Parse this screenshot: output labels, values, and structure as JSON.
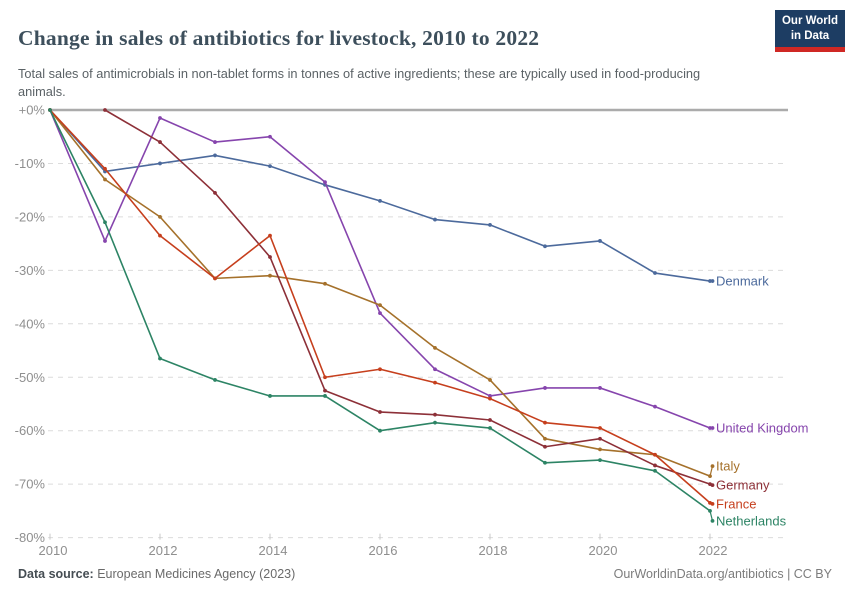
{
  "header": {
    "title": "Change in sales of antibiotics for livestock, 2010 to 2022",
    "subtitle": "Total sales of antimicrobials in non-tablet forms in tonnes of active ingredients; these are typically used in food-producing animals.",
    "logo": {
      "line1": "Our World",
      "line2": "in Data",
      "bg_color": "#1d3d63",
      "accent_color": "#cf2824"
    }
  },
  "chart_data": {
    "type": "line",
    "title": "Change in sales of antibiotics for livestock, 2010 to 2022",
    "xlabel": "",
    "ylabel": "",
    "x": [
      2010,
      2011,
      2012,
      2013,
      2014,
      2015,
      2016,
      2017,
      2018,
      2019,
      2020,
      2021,
      2022
    ],
    "xlim": [
      2010,
      2022
    ],
    "ylim": [
      -80,
      0
    ],
    "yticks": [
      0,
      -10,
      -20,
      -30,
      -40,
      -50,
      -60,
      -70,
      -80
    ],
    "ytick_labels": [
      "+0%",
      "-10%",
      "-20%",
      "-30%",
      "-40%",
      "-50%",
      "-60%",
      "-70%",
      "-80%"
    ],
    "xticks": [
      2010,
      2012,
      2014,
      2016,
      2018,
      2020,
      2022
    ],
    "xtick_labels": [
      "2010",
      "2012",
      "2014",
      "2016",
      "2018",
      "2020",
      "2022"
    ],
    "grid": "horizontal-dashed",
    "legend_position": "labels-at-line-ends",
    "series": [
      {
        "name": "Denmark",
        "color": "#4c6a9c",
        "label_dy": 0,
        "values": [
          0,
          -11.5,
          -10,
          -8.5,
          -10.5,
          -14,
          -17,
          -20.5,
          -21.5,
          -25.5,
          -24.5,
          -30.5,
          -32
        ]
      },
      {
        "name": "United Kingdom",
        "color": "#8645ad",
        "label_dy": 0,
        "values": [
          0,
          -24.5,
          -1.5,
          -6,
          -5,
          -13.5,
          -38,
          -48.5,
          -53.5,
          -52,
          -52,
          -55.5,
          -59.5
        ]
      },
      {
        "name": "Italy",
        "color": "#a5712b",
        "label_dy": -10,
        "values": [
          0,
          -13,
          -20,
          -31.5,
          -31,
          -32.5,
          -36.5,
          -44.5,
          -50.5,
          -61.5,
          -63.5,
          -64.5,
          -68.5
        ]
      },
      {
        "name": "Germany",
        "color": "#8d3038",
        "label_dy": 1,
        "values": [
          null,
          0,
          -6,
          -15.5,
          -27.5,
          -52.5,
          -56.5,
          -57,
          -58,
          -63,
          -61.5,
          -66.5,
          -70
        ]
      },
      {
        "name": "France",
        "color": "#c63f1d",
        "label_dy": 1,
        "values": [
          0,
          -11,
          -23.5,
          -31.5,
          -23.5,
          -50,
          -48.5,
          -51,
          -54,
          -58.5,
          -59.5,
          -64.5,
          -73.5
        ]
      },
      {
        "name": "Netherlands",
        "color": "#2d8465",
        "label_dy": 10,
        "values": [
          0,
          -21,
          -46.5,
          -50.5,
          -53.5,
          -53.5,
          -60,
          -58.5,
          -59.5,
          -66,
          -65.5,
          -67.5,
          -75
        ]
      }
    ]
  },
  "footer": {
    "source_label": "Data source:",
    "source_text": "European Medicines Agency (2023)",
    "credit": "OurWorldinData.org/antibiotics | CC BY"
  }
}
